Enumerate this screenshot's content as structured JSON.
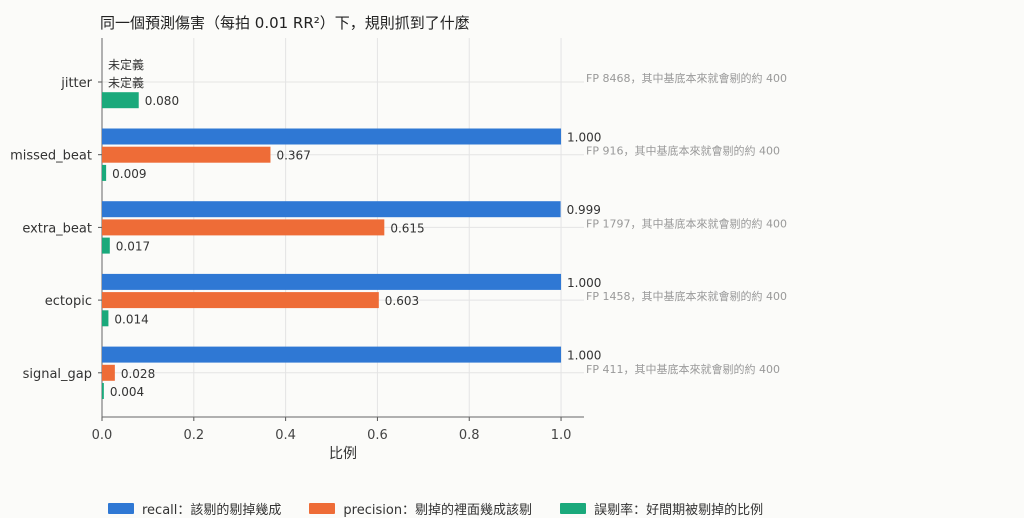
{
  "chart_data": {
    "type": "bar",
    "orientation": "horizontal",
    "title": "同一個預測傷害（每拍 0.01 RR²）下，規則抓到了什麼",
    "xlabel": "比例",
    "ylabel": "",
    "xlim": [
      0,
      1.05
    ],
    "xticks": [
      "0.0",
      "0.2",
      "0.4",
      "0.6",
      "0.8",
      "1.0"
    ],
    "categories": [
      "jitter",
      "missed_beat",
      "extra_beat",
      "ectopic",
      "signal_gap"
    ],
    "series": [
      {
        "name": "recall：該剔的剔掉幾成",
        "color": "#2f78d4",
        "values": [
          null,
          1.0,
          0.999,
          1.0,
          1.0
        ],
        "labels": [
          "未定義",
          "1.000",
          "0.999",
          "1.000",
          "1.000"
        ]
      },
      {
        "name": "precision：剔掉的裡面幾成該剔",
        "color": "#ee6c37",
        "values": [
          null,
          0.367,
          0.615,
          0.603,
          0.028
        ],
        "labels": [
          "未定義",
          "0.367",
          "0.615",
          "0.603",
          "0.028"
        ]
      },
      {
        "name": "誤剔率：好間期被剔掉的比例",
        "color": "#1aa97b",
        "values": [
          0.08,
          0.009,
          0.017,
          0.014,
          0.004
        ],
        "labels": [
          "0.080",
          "0.009",
          "0.017",
          "0.014",
          "0.004"
        ]
      }
    ],
    "annotations": [
      "FP 8468，其中基底本來就會剔的約 400",
      "FP 916，其中基底本來就會剔的約 400",
      "FP 1797，其中基底本來就會剔的約 400",
      "FP 1458，其中基底本來就會剔的約 400",
      "FP 411，其中基底本來就會剔的約 400"
    ],
    "grid": true,
    "legend_position": "bottom"
  }
}
